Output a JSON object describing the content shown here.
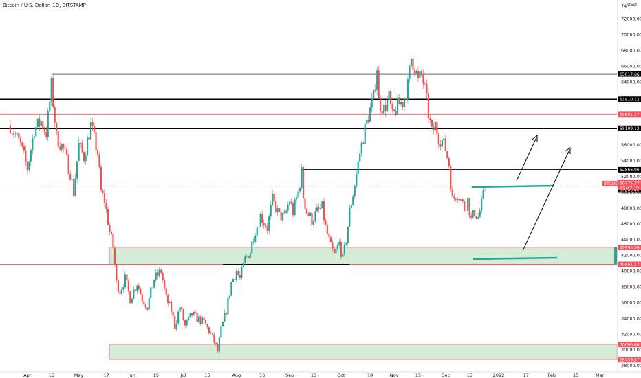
{
  "header": {
    "title": "Bitcoin / U.S. Dollar, 1D, BITSTAMP"
  },
  "axis": {
    "currency_label": "USD",
    "corner_label": "74"
  },
  "chart_data": {
    "type": "candlestick",
    "title": "Bitcoin / U.S. Dollar, 1D, BITSTAMP",
    "y_axis_side": "right",
    "ylim": [
      27300,
      74400
    ],
    "y_ticks": [
      28000,
      30000,
      32000,
      34000,
      36000,
      38000,
      40000,
      42000,
      44000,
      46000,
      48000,
      50000,
      52000,
      54000,
      56000,
      58000,
      60000,
      62000,
      64000,
      66000,
      68000,
      70000,
      72000
    ],
    "y_tick_labels": [
      "28000.00",
      "30000.00",
      "32000.00",
      "34000.00",
      "36000.00",
      "38000.00",
      "40000.00",
      "42000.00",
      "44000.00",
      "46000.00",
      "48000.00",
      "50000.00",
      "52000.00",
      "54000.00",
      "56000.00",
      "58000.00",
      "60000.00",
      "62000.00",
      "64000.00",
      "66000.00",
      "68000.00",
      "70000.00",
      "72000.00"
    ],
    "x_labels": [
      {
        "label": "Apr",
        "t": 10
      },
      {
        "label": "15",
        "t": 24
      },
      {
        "label": "May",
        "t": 40
      },
      {
        "label": "17",
        "t": 56
      },
      {
        "label": "Jun",
        "t": 71
      },
      {
        "label": "15",
        "t": 85
      },
      {
        "label": "Jul",
        "t": 101
      },
      {
        "label": "15",
        "t": 115
      },
      {
        "label": "Aug",
        "t": 132
      },
      {
        "label": "16",
        "t": 147
      },
      {
        "label": "Sep",
        "t": 163
      },
      {
        "label": "15",
        "t": 177
      },
      {
        "label": "Oct",
        "t": 193
      },
      {
        "label": "18",
        "t": 210
      },
      {
        "label": "Nov",
        "t": 224
      },
      {
        "label": "15",
        "t": 238
      },
      {
        "label": "Dec",
        "t": 254
      },
      {
        "label": "15",
        "t": 268
      },
      {
        "label": "2022",
        "t": 285
      },
      {
        "label": "17",
        "t": 301
      },
      {
        "label": "Feb",
        "t": 316
      },
      {
        "label": "15",
        "t": 330
      },
      {
        "label": "Mar",
        "t": 344
      }
    ],
    "x_range": [
      -6,
      354
    ],
    "price_anchors": [
      [
        0,
        58500
      ],
      [
        6,
        56000
      ],
      [
        10,
        53000
      ],
      [
        14,
        58000
      ],
      [
        18,
        59000
      ],
      [
        21,
        57500
      ],
      [
        24,
        63500
      ],
      [
        27,
        57000
      ],
      [
        31,
        55500
      ],
      [
        35,
        52500
      ],
      [
        37,
        50000
      ],
      [
        40,
        56000
      ],
      [
        43,
        54500
      ],
      [
        46,
        57500
      ],
      [
        47,
        58500
      ],
      [
        51,
        55000
      ],
      [
        53,
        50000
      ],
      [
        55,
        49000
      ],
      [
        58,
        45000
      ],
      [
        60,
        43000
      ],
      [
        62,
        38500
      ],
      [
        64,
        37500
      ],
      [
        67,
        39000
      ],
      [
        70,
        36500
      ],
      [
        74,
        38500
      ],
      [
        77,
        36500
      ],
      [
        80,
        35500
      ],
      [
        84,
        39000
      ],
      [
        88,
        40000
      ],
      [
        91,
        36500
      ],
      [
        94,
        35000
      ],
      [
        96,
        33000
      ],
      [
        99,
        35500
      ],
      [
        102,
        33000
      ],
      [
        106,
        34500
      ],
      [
        109,
        34000
      ],
      [
        113,
        33500
      ],
      [
        117,
        32000
      ],
      [
        119,
        31000
      ],
      [
        121,
        29800
      ],
      [
        123,
        32500
      ],
      [
        126,
        35000
      ],
      [
        129,
        38500
      ],
      [
        132,
        40000
      ],
      [
        134,
        39000
      ],
      [
        137,
        41500
      ],
      [
        140,
        42500
      ],
      [
        142,
        44500
      ],
      [
        146,
        47000
      ],
      [
        150,
        45500
      ],
      [
        153,
        49000
      ],
      [
        157,
        47000
      ],
      [
        160,
        46800
      ],
      [
        163,
        49000
      ],
      [
        165,
        47500
      ],
      [
        168,
        50000
      ],
      [
        170,
        52500
      ],
      [
        171,
        49500
      ],
      [
        173,
        47500
      ],
      [
        176,
        46500
      ],
      [
        179,
        47500
      ],
      [
        182,
        48000
      ],
      [
        184,
        45500
      ],
      [
        187,
        43000
      ],
      [
        189,
        42000
      ],
      [
        192,
        43500
      ],
      [
        194,
        41500
      ],
      [
        196,
        44000
      ],
      [
        198,
        47500
      ],
      [
        201,
        51000
      ],
      [
        204,
        55000
      ],
      [
        207,
        58000
      ],
      [
        210,
        60500
      ],
      [
        212,
        62000
      ],
      [
        214,
        66000
      ],
      [
        215,
        61500
      ],
      [
        218,
        60500
      ],
      [
        221,
        62000
      ],
      [
        223,
        59500
      ],
      [
        226,
        61000
      ],
      [
        229,
        61500
      ],
      [
        232,
        63500
      ],
      [
        234,
        67000
      ],
      [
        236,
        66000
      ],
      [
        238,
        64000
      ],
      [
        240,
        65000
      ],
      [
        242,
        63000
      ],
      [
        244,
        60000
      ],
      [
        246,
        57500
      ],
      [
        248,
        58500
      ],
      [
        250,
        57000
      ],
      [
        252,
        56500
      ],
      [
        254,
        55500
      ],
      [
        256,
        53500
      ],
      [
        258,
        49000
      ],
      [
        261,
        50000
      ],
      [
        263,
        49000
      ],
      [
        265,
        48000
      ],
      [
        267,
        49000
      ],
      [
        269,
        46500
      ],
      [
        271,
        47500
      ],
      [
        273,
        46800
      ],
      [
        275,
        48500
      ],
      [
        277,
        50500
      ]
    ],
    "levels": [
      {
        "value": 65017.66,
        "label": "65017.66",
        "color": "#000000",
        "t_start": 24,
        "style": "line"
      },
      {
        "value": 61810.12,
        "label": "61810.12",
        "color": "#000000",
        "t_start": -6,
        "style": "line"
      },
      {
        "value": 59891.17,
        "label": "59891.17",
        "color": "#f7525f",
        "t_start": -6,
        "style": "thin"
      },
      {
        "value": 58109.12,
        "label": "58109.12",
        "color": "#000000",
        "t_start": -6,
        "style": "line"
      },
      {
        "value": 52866.06,
        "label": "52866.06",
        "color": "#000000",
        "t_start": 170,
        "style": "line"
      },
      {
        "value": 50286.4,
        "label": "50286.40",
        "color": "#000000",
        "t_start": -6,
        "style": "gray"
      },
      {
        "value": 42995.39,
        "label": "42995.39",
        "color": "#f7525f",
        "t_start": -6,
        "style": "none"
      },
      {
        "value": 40861.17,
        "label": "40861.17",
        "color": "#f7525f",
        "t_start": -6,
        "style": "thin"
      },
      {
        "value": 30686.06,
        "label": "30686.06",
        "color": "#f7525f",
        "t_start": -6,
        "style": "none"
      },
      {
        "value": 28759.57,
        "label": "28759.57",
        "color": "#f7525f",
        "t_start": -6,
        "style": "none"
      }
    ],
    "zones": [
      {
        "from": 40861.17,
        "to": 42995.39,
        "t_start": 58
      },
      {
        "from": 28759.57,
        "to": 30686.06,
        "t_start": 58
      }
    ],
    "current": {
      "symbol": "BTCUSD",
      "price": "50775.27",
      "countdown": "05:47:19",
      "value": 50775.27
    }
  }
}
